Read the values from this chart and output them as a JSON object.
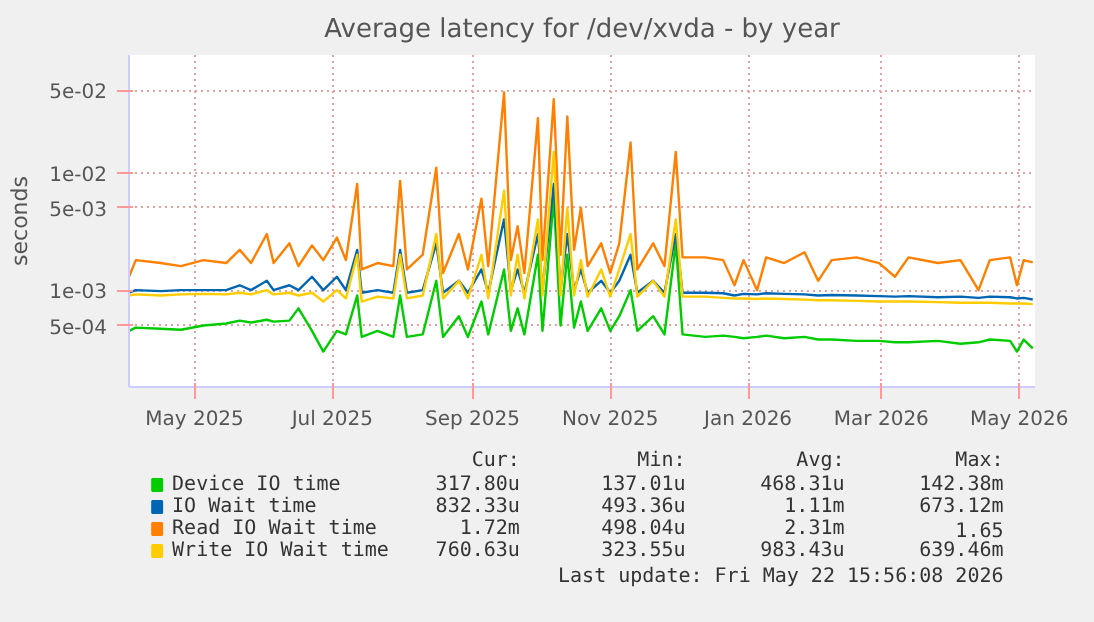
{
  "chart_data": {
    "type": "line",
    "title": "Average latency for /dev/xvda - by year",
    "ylabel": "seconds",
    "log": "y",
    "grid": true,
    "legend": "bottom",
    "line_style": "solid",
    "marker": "none",
    "xlim": [
      "2025-04-17",
      "2026-05-23"
    ],
    "xticks": [
      {
        "value": "2025-05-16",
        "label": "May 2025"
      },
      {
        "value": "2025-07-16",
        "label": "Jul 2025"
      },
      {
        "value": "2025-09-16",
        "label": "Sep 2025"
      },
      {
        "value": "2025-11-16",
        "label": "Nov 2025"
      },
      {
        "value": "2026-01-16",
        "label": "Jan 2026"
      },
      {
        "value": "2026-03-16",
        "label": "Mar 2026"
      },
      {
        "value": "2026-05-16",
        "label": "May 2026"
      }
    ],
    "ylim": [
      0.00015,
      0.1
    ],
    "yticks": [
      {
        "value": 0.0005,
        "label": "5e-04"
      },
      {
        "value": 0.001,
        "label": "1e-03"
      },
      {
        "value": 0.005,
        "label": "5e-03"
      },
      {
        "value": 0.01,
        "label": "1e-02"
      },
      {
        "value": 0.05,
        "label": "5e-02"
      }
    ],
    "x": [
      "2025-04-17",
      "2025-04-20",
      "2025-05-01",
      "2025-05-10",
      "2025-05-20",
      "2025-05-30",
      "2025-06-05",
      "2025-06-10",
      "2025-06-17",
      "2025-06-20",
      "2025-06-27",
      "2025-07-01",
      "2025-07-07",
      "2025-07-12",
      "2025-07-18",
      "2025-07-22",
      "2025-07-27",
      "2025-07-29",
      "2025-08-05",
      "2025-08-12",
      "2025-08-15",
      "2025-08-18",
      "2025-08-25",
      "2025-08-31",
      "2025-09-03",
      "2025-09-10",
      "2025-09-14",
      "2025-09-20",
      "2025-09-23",
      "2025-09-30",
      "2025-10-03",
      "2025-10-06",
      "2025-10-09",
      "2025-10-15",
      "2025-10-17",
      "2025-10-22",
      "2025-10-25",
      "2025-10-28",
      "2025-10-31",
      "2025-11-03",
      "2025-11-06",
      "2025-11-12",
      "2025-11-16",
      "2025-11-20",
      "2025-11-25",
      "2025-11-28",
      "2025-12-05",
      "2025-12-10",
      "2025-12-15",
      "2025-12-18",
      "2025-12-28",
      "2026-01-05",
      "2026-01-10",
      "2026-01-14",
      "2026-01-20",
      "2026-01-24",
      "2026-02-01",
      "2026-02-10",
      "2026-02-16",
      "2026-02-22",
      "2026-03-05",
      "2026-03-15",
      "2026-03-22",
      "2026-03-28",
      "2026-04-10",
      "2026-04-20",
      "2026-04-28",
      "2026-05-03",
      "2026-05-12",
      "2026-05-15",
      "2026-05-18",
      "2026-05-22"
    ],
    "series": [
      {
        "name": "Device IO time",
        "color": "#00cc00",
        "values": [
          0.00045,
          0.00048,
          0.00047,
          0.00046,
          0.0005,
          0.00052,
          0.00055,
          0.00053,
          0.00056,
          0.00054,
          0.00055,
          0.0007,
          0.00045,
          0.0003,
          0.00045,
          0.00042,
          0.0009,
          0.0004,
          0.00045,
          0.0004,
          0.0009,
          0.0004,
          0.00042,
          0.0012,
          0.0004,
          0.0006,
          0.0004,
          0.0008,
          0.00042,
          0.0015,
          0.00045,
          0.0007,
          0.00042,
          0.002,
          0.00045,
          0.006,
          0.0005,
          0.002,
          0.00048,
          0.0008,
          0.00045,
          0.0007,
          0.00045,
          0.0006,
          0.001,
          0.00045,
          0.0006,
          0.00042,
          0.0025,
          0.00042,
          0.0004,
          0.00041,
          0.0004,
          0.00039,
          0.0004,
          0.00041,
          0.00039,
          0.0004,
          0.00038,
          0.00038,
          0.00037,
          0.00037,
          0.00036,
          0.00036,
          0.00037,
          0.00035,
          0.00036,
          0.00038,
          0.00037,
          0.0003,
          0.00038,
          0.00032
        ]
      },
      {
        "name": "IO Wait time",
        "color": "#0066b3",
        "values": [
          0.00095,
          0.001,
          0.00098,
          0.001,
          0.001,
          0.001,
          0.0011,
          0.001,
          0.0012,
          0.001,
          0.0011,
          0.001,
          0.0013,
          0.001,
          0.0013,
          0.001,
          0.0022,
          0.00095,
          0.001,
          0.00095,
          0.0022,
          0.00095,
          0.001,
          0.0025,
          0.00095,
          0.0012,
          0.00095,
          0.0015,
          0.00095,
          0.004,
          0.001,
          0.0015,
          0.00095,
          0.003,
          0.001,
          0.008,
          0.001,
          0.003,
          0.001,
          0.0015,
          0.00095,
          0.0012,
          0.00095,
          0.0012,
          0.002,
          0.00095,
          0.0012,
          0.00095,
          0.003,
          0.00095,
          0.00095,
          0.00094,
          0.0009,
          0.00093,
          0.00092,
          0.00094,
          0.00093,
          0.00092,
          0.0009,
          0.00091,
          0.0009,
          0.00089,
          0.00088,
          0.00089,
          0.00087,
          0.00088,
          0.00086,
          0.00088,
          0.00087,
          0.00085,
          0.00086,
          0.00083233
        ]
      },
      {
        "name": "Read IO Wait time",
        "color": "#ff8000",
        "values": [
          0.0013,
          0.0018,
          0.0017,
          0.0016,
          0.0018,
          0.0017,
          0.0022,
          0.0017,
          0.003,
          0.0017,
          0.0025,
          0.0016,
          0.0024,
          0.0018,
          0.0028,
          0.0018,
          0.008,
          0.0015,
          0.0017,
          0.0016,
          0.0085,
          0.0015,
          0.002,
          0.011,
          0.0014,
          0.003,
          0.0015,
          0.006,
          0.0016,
          0.048,
          0.0018,
          0.0035,
          0.0014,
          0.029,
          0.0018,
          0.042,
          0.002,
          0.03,
          0.0022,
          0.005,
          0.0016,
          0.0025,
          0.0014,
          0.0025,
          0.018,
          0.0015,
          0.0025,
          0.0016,
          0.015,
          0.0019,
          0.0019,
          0.0018,
          0.0011,
          0.0018,
          0.001,
          0.0019,
          0.0017,
          0.0021,
          0.0012,
          0.0018,
          0.0019,
          0.0017,
          0.0013,
          0.0019,
          0.0017,
          0.0018,
          0.001,
          0.0018,
          0.0019,
          0.0011,
          0.0018,
          0.00172
        ]
      },
      {
        "name": "Write IO Wait time",
        "color": "#ffcc00",
        "values": [
          0.0009,
          0.00092,
          0.0009,
          0.00092,
          0.00093,
          0.00092,
          0.00095,
          0.00092,
          0.001,
          0.00092,
          0.00095,
          0.0009,
          0.00095,
          0.0008,
          0.001,
          0.00085,
          0.002,
          0.0008,
          0.00088,
          0.00085,
          0.002,
          0.00085,
          0.0009,
          0.003,
          0.00085,
          0.0012,
          0.00085,
          0.002,
          0.00085,
          0.007,
          0.0009,
          0.002,
          0.00085,
          0.004,
          0.0009,
          0.015,
          0.0009,
          0.005,
          0.0009,
          0.0018,
          0.00088,
          0.0015,
          0.00088,
          0.0015,
          0.003,
          0.00088,
          0.0012,
          0.00088,
          0.004,
          0.00088,
          0.00088,
          0.00086,
          0.00085,
          0.00085,
          0.00084,
          0.00085,
          0.00084,
          0.00083,
          0.00082,
          0.00082,
          0.00081,
          0.0008,
          0.0008,
          0.0008,
          0.00079,
          0.00078,
          0.00078,
          0.00078,
          0.00077,
          0.00077,
          0.00077,
          0.00076063
        ]
      }
    ],
    "annotations": [
      "Cur:",
      "Min:",
      "Avg:",
      "Max:",
      "317.80u",
      "137.01u",
      "468.31u",
      "142.38m",
      "832.33u",
      "493.36u",
      "1.11m",
      "673.12m",
      "1.72m",
      "498.04u",
      "2.31m",
      "1.65",
      "760.63u",
      "323.55u",
      "983.43u",
      "639.46m",
      "Last update: Fri May 22 15:56:08 2026"
    ]
  }
}
